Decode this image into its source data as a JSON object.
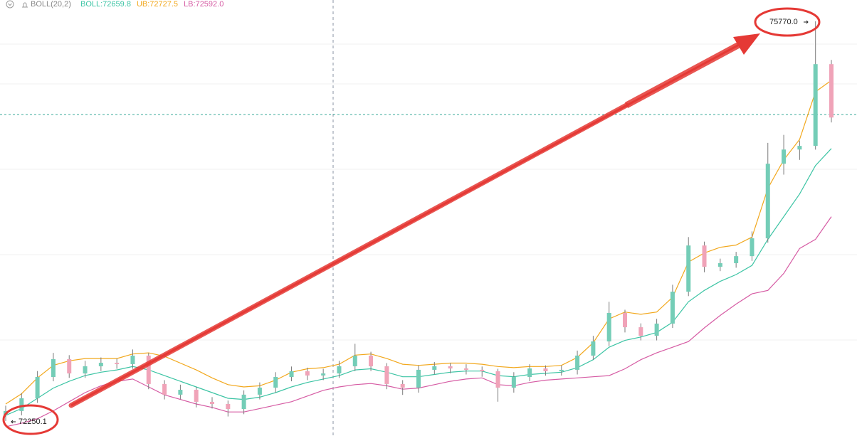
{
  "chart_data": {
    "type": "candlestick",
    "indicator": "BOLL(20,2)",
    "open": [
      72300,
      72338,
      72450,
      72638,
      72795,
      72669,
      72732,
      72763,
      72751,
      72826,
      72576,
      72482,
      72525,
      72419,
      72400,
      72356,
      72482,
      72544,
      72638,
      72688,
      72651,
      72669,
      72732,
      72826,
      72732,
      72576,
      72544,
      72701,
      72732,
      72713,
      72701,
      72688,
      72544,
      72638,
      72713,
      72688,
      72701,
      72826,
      72951,
      73202,
      73076,
      73001,
      73108,
      73389,
      73796,
      73608,
      73640,
      73702,
      73859,
      74516,
      74641,
      74673,
      75393
    ],
    "high": [
      72385,
      72495,
      72690,
      72850,
      72830,
      72780,
      72810,
      72800,
      72880,
      72850,
      72610,
      72570,
      72550,
      72460,
      72430,
      72520,
      72590,
      72680,
      72730,
      72720,
      72710,
      72780,
      72930,
      72860,
      72760,
      72610,
      72740,
      72770,
      72760,
      72750,
      72730,
      72710,
      72680,
      72750,
      72740,
      72740,
      72870,
      73000,
      73300,
      73230,
      73110,
      73150,
      73450,
      73870,
      73830,
      73680,
      73740,
      73920,
      74700,
      74770,
      74720,
      75770.0,
      75430
    ],
    "low": [
      72250.1,
      72300,
      72410,
      72600,
      72630,
      72630,
      72690,
      72710,
      72710,
      72530,
      72440,
      72440,
      72370,
      72360,
      72290,
      72310,
      72440,
      72500,
      72600,
      72610,
      72610,
      72630,
      72690,
      72690,
      72530,
      72480,
      72500,
      72660,
      72670,
      72660,
      72640,
      72420,
      72500,
      72600,
      72650,
      72650,
      72660,
      72790,
      72910,
      73030,
      72960,
      72960,
      73070,
      73350,
      73560,
      73570,
      73600,
      73660,
      73820,
      74420,
      74550,
      74640,
      74880
    ],
    "close": [
      72338,
      72450,
      72638,
      72795,
      72669,
      72732,
      72763,
      72751,
      72826,
      72576,
      72482,
      72525,
      72419,
      72400,
      72356,
      72482,
      72544,
      72638,
      72688,
      72651,
      72669,
      72732,
      72826,
      72732,
      72576,
      72544,
      72701,
      72732,
      72713,
      72701,
      72688,
      72544,
      72638,
      72713,
      72688,
      72701,
      72826,
      72951,
      73202,
      73076,
      73001,
      73108,
      73389,
      73796,
      73608,
      73640,
      73702,
      73859,
      74516,
      74641,
      74673,
      75393,
      74923
    ],
    "up_color": "#74cdb7",
    "down_color": "#f0a3b8",
    "series": [
      {
        "name": "BOLL:72659.8",
        "color": "#3cc4a4",
        "values": [
          72300,
          72360,
          72450,
          72540,
          72600,
          72650,
          72680,
          72700,
          72730,
          72700,
          72650,
          72600,
          72550,
          72500,
          72450,
          72440,
          72460,
          72500,
          72550,
          72590,
          72620,
          72650,
          72700,
          72710,
          72680,
          72640,
          72640,
          72660,
          72680,
          72690,
          72690,
          72650,
          72640,
          72660,
          72670,
          72680,
          72720,
          72790,
          72900,
          72960,
          72990,
          73030,
          73120,
          73300,
          73400,
          73480,
          73540,
          73620,
          73850,
          74050,
          74250,
          74500,
          74650
        ]
      },
      {
        "name": "UB:72727.5",
        "color": "#f2a81d",
        "values": [
          72400,
          72490,
          72630,
          72740,
          72780,
          72800,
          72800,
          72800,
          72840,
          72850,
          72820,
          72760,
          72700,
          72630,
          72570,
          72550,
          72560,
          72610,
          72680,
          72710,
          72720,
          72750,
          72830,
          72840,
          72800,
          72750,
          72740,
          72750,
          72760,
          72760,
          72750,
          72730,
          72720,
          72730,
          72730,
          72740,
          72810,
          72940,
          73150,
          73210,
          73190,
          73210,
          73340,
          73650,
          73730,
          73780,
          73800,
          73870,
          74300,
          74550,
          74730,
          75150,
          75250
        ]
      },
      {
        "name": "LB:72592.0",
        "color": "#d65ca4",
        "values": [
          72200,
          72230,
          72270,
          72340,
          72420,
          72500,
          72560,
          72600,
          72620,
          72550,
          72480,
          72440,
          72400,
          72370,
          72330,
          72330,
          72360,
          72390,
          72420,
          72470,
          72520,
          72550,
          72570,
          72580,
          72560,
          72530,
          72540,
          72570,
          72600,
          72620,
          72630,
          72570,
          72560,
          72590,
          72610,
          72620,
          72630,
          72640,
          72650,
          72710,
          72790,
          72850,
          72900,
          72950,
          73070,
          73180,
          73280,
          73370,
          73400,
          73550,
          73770,
          73850,
          74050
        ]
      }
    ],
    "max_label": "75770.0",
    "min_label": "72250.1",
    "ylim": [
      72118,
      75958
    ]
  }
}
